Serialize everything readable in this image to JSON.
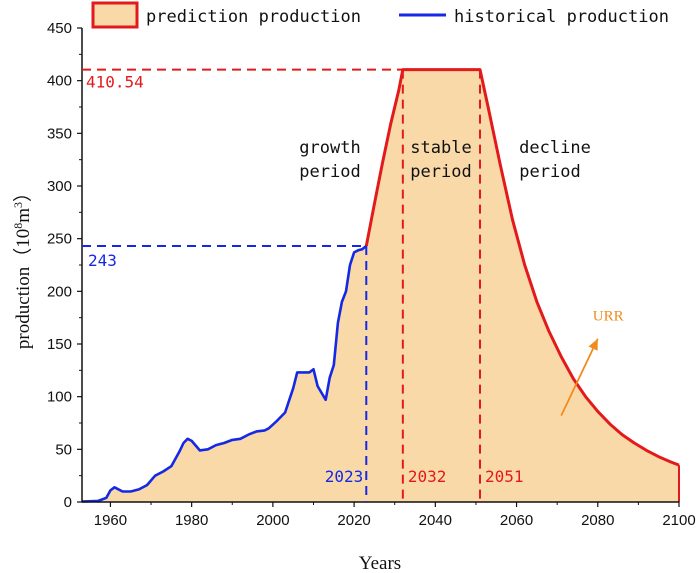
{
  "chart_data": {
    "type": "area",
    "title": "",
    "xlabel": "Years",
    "ylabel": "production (10^8 m^3)",
    "ylabel_parts": {
      "prefix": "production（",
      "base": "10",
      "exp1": "8",
      "unit": "m",
      "exp2": "3",
      "suffix": "）"
    },
    "xlim": [
      1953,
      2100
    ],
    "ylim": [
      0,
      450
    ],
    "x_ticks": [
      1960,
      1980,
      2000,
      2020,
      2040,
      2060,
      2080,
      2100
    ],
    "y_ticks": [
      0,
      50,
      100,
      150,
      200,
      250,
      300,
      350,
      400,
      450
    ],
    "legend": {
      "position": "top",
      "prediction_label": "prediction production",
      "historical_label": "historical production"
    },
    "colors": {
      "prediction_line": "#e31a1c",
      "prediction_fill": "#fad9a8",
      "historical": "#1428e6",
      "annotation_blue": "#1428e6",
      "annotation_red": "#e31a1c",
      "urr": "#f08c1e"
    },
    "series": [
      {
        "name": "historical production",
        "x": [
          1953,
          1957,
          1959,
          1960,
          1961,
          1963,
          1965,
          1967,
          1969,
          1971,
          1973,
          1975,
          1977,
          1978,
          1979,
          1980,
          1982,
          1984,
          1986,
          1988,
          1990,
          1992,
          1994,
          1996,
          1998,
          1999,
          2001,
          2003,
          2005,
          2006,
          2007,
          2009,
          2010,
          2011,
          2013,
          2014,
          2015,
          2016,
          2017,
          2018,
          2019,
          2020,
          2021,
          2022,
          2023
        ],
        "values": [
          0.5,
          1,
          4,
          11,
          14,
          10,
          10,
          12,
          16,
          25,
          29,
          34,
          48,
          56,
          60,
          58,
          49,
          50,
          54,
          56,
          59,
          60,
          64,
          67,
          68,
          70,
          77,
          85,
          108,
          123,
          123,
          123,
          126,
          110,
          97,
          118,
          130,
          170,
          190,
          200,
          225,
          237,
          239,
          240,
          243
        ]
      },
      {
        "name": "prediction production",
        "x": [
          2023,
          2025,
          2027,
          2029,
          2031,
          2032,
          2051,
          2053,
          2056,
          2059,
          2062,
          2065,
          2068,
          2071,
          2074,
          2077,
          2080,
          2083,
          2086,
          2089,
          2092,
          2095,
          2098,
          2100
        ],
        "values": [
          243,
          283,
          322,
          359,
          391,
          410.54,
          410.54,
          375,
          320,
          268,
          225,
          190,
          162,
          138,
          117,
          100,
          86,
          74,
          64,
          56,
          49,
          43,
          38,
          35
        ]
      }
    ],
    "phases": [
      {
        "line1": "growth",
        "line2": "period"
      },
      {
        "line1": "stable",
        "line2": "period"
      },
      {
        "line1": "decline",
        "line2": "period"
      }
    ],
    "annotations": {
      "peak_value": "410.54",
      "peak_y": 410.54,
      "current_value": "243",
      "current_y": 243,
      "year_2023": "2023",
      "year_2032": "2032",
      "year_2051": "2051",
      "x_2023": 2023,
      "x_2032": 2032,
      "x_2051": 2051,
      "urr_label": "URR",
      "urr_arrow_from": [
        2071,
        82
      ],
      "urr_arrow_to": [
        2080,
        155
      ]
    }
  }
}
